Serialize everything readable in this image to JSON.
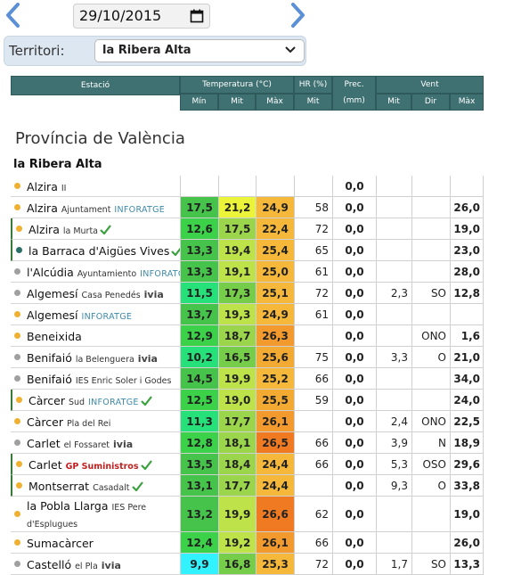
{
  "date": {
    "value": "29/10/2015"
  },
  "territory": {
    "label": "Territori:",
    "selected": "la Ribera Alta"
  },
  "header": {
    "station": "Estació",
    "temperature": "Temperatura (°C)",
    "hr": "HR (%)",
    "prec": "Prec. (mm)",
    "wind": "Vent",
    "min": "Mín",
    "mit": "Mit",
    "max": "Màx",
    "hr_mit": "Mit",
    "wind_mit": "Mit",
    "wind_dir": "Dir",
    "wind_max": "Màx"
  },
  "province": "Província de València",
  "region": "la Ribera Alta",
  "colors": {
    "header_bg": "#3f7173",
    "dot_orange": "#f0b030",
    "dot_gray": "#a0a0a0",
    "dot_teal": "#2a6f68",
    "check": "#3aa040"
  },
  "stations": [
    {
      "name": "Alzira",
      "sub": "II",
      "brand": "",
      "check": false,
      "dot": "orange",
      "tmin": "",
      "tmit": "",
      "tmax": "",
      "hr": "",
      "prec": "0,0",
      "wmit": "",
      "wdir": "",
      "wmax": ""
    },
    {
      "name": "Alzira",
      "sub": "Ajuntament",
      "brand": "INFORATGE",
      "check": false,
      "dot": "orange",
      "tmin": "17,5",
      "tmit": "21,2",
      "tmax": "24,9",
      "hr": "58",
      "prec": "0,0",
      "wmit": "",
      "wdir": "",
      "wmax": "26,0"
    },
    {
      "name": "Alzira",
      "sub": "la Murta",
      "brand": "",
      "check": true,
      "dot": "orange",
      "tmin": "12,6",
      "tmit": "17,5",
      "tmax": "22,4",
      "hr": "72",
      "prec": "0,0",
      "wmit": "",
      "wdir": "",
      "wmax": "19,0"
    },
    {
      "name": "la Barraca d'Aigües Vives",
      "sub": "",
      "brand": "",
      "check": true,
      "dot": "teal",
      "tmin": "13,3",
      "tmit": "19,4",
      "tmax": "25,4",
      "hr": "65",
      "prec": "0,0",
      "wmit": "",
      "wdir": "",
      "wmax": "23,0"
    },
    {
      "name": "l'Alcúdia",
      "sub": "Ayuntamiento",
      "brand": "INFORATGE",
      "check": false,
      "dot": "gray",
      "tmin": "13,3",
      "tmit": "19,1",
      "tmax": "25,0",
      "hr": "61",
      "prec": "0,0",
      "wmit": "",
      "wdir": "",
      "wmax": "28,0"
    },
    {
      "name": "Algemesí",
      "sub": "Casa Penedés",
      "brand": "ivia",
      "check": false,
      "dot": "gray",
      "tmin": "11,5",
      "tmit": "17,3",
      "tmax": "25,1",
      "hr": "72",
      "prec": "0,0",
      "wmit": "2,3",
      "wdir": "SO",
      "wmax": "12,8"
    },
    {
      "name": "Algemesí",
      "sub": "",
      "brand": "INFORATGE",
      "check": false,
      "dot": "orange",
      "tmin": "13,7",
      "tmit": "19,3",
      "tmax": "24,9",
      "hr": "61",
      "prec": "0,0",
      "wmit": "",
      "wdir": "",
      "wmax": ""
    },
    {
      "name": "Beneixida",
      "sub": "",
      "brand": "",
      "check": false,
      "dot": "orange",
      "tmin": "12,9",
      "tmit": "18,7",
      "tmax": "26,3",
      "hr": "",
      "prec": "0,0",
      "wmit": "",
      "wdir": "ONO",
      "wmax": "1,6"
    },
    {
      "name": "Benifaió",
      "sub": "la Belenguera",
      "brand": "ivia",
      "check": false,
      "dot": "gray",
      "tmin": "10,2",
      "tmit": "16,5",
      "tmax": "25,6",
      "hr": "75",
      "prec": "0,0",
      "wmit": "3,3",
      "wdir": "O",
      "wmax": "21,0"
    },
    {
      "name": "Benifaió",
      "sub": "IES Enric Soler i Godes",
      "brand": "",
      "check": false,
      "dot": "gray",
      "tmin": "14,5",
      "tmit": "19,9",
      "tmax": "25,2",
      "hr": "66",
      "prec": "0,0",
      "wmit": "",
      "wdir": "",
      "wmax": "34,0"
    },
    {
      "name": "Càrcer",
      "sub": "Sud",
      "brand": "INFORATGE",
      "check": true,
      "dot": "orange",
      "tmin": "12,5",
      "tmit": "19,0",
      "tmax": "25,5",
      "hr": "59",
      "prec": "0,0",
      "wmit": "",
      "wdir": "",
      "wmax": "24,0"
    },
    {
      "name": "Càrcer",
      "sub": "Pla del Rei",
      "brand": "",
      "check": false,
      "dot": "orange",
      "tmin": "11,3",
      "tmit": "17,7",
      "tmax": "26,1",
      "hr": "",
      "prec": "0,0",
      "wmit": "2,4",
      "wdir": "ONO",
      "wmax": "22,5"
    },
    {
      "name": "Carlet",
      "sub": "el Fossaret",
      "brand": "ivia",
      "check": false,
      "dot": "gray",
      "tmin": "12,8",
      "tmit": "18,1",
      "tmax": "26,5",
      "hr": "66",
      "prec": "0,0",
      "wmit": "3,9",
      "wdir": "N",
      "wmax": "18,9"
    },
    {
      "name": "Carlet",
      "sub": "",
      "brand": "GP Suministros",
      "check": true,
      "dot": "orange",
      "tmin": "13,5",
      "tmit": "18,4",
      "tmax": "24,4",
      "hr": "66",
      "prec": "0,0",
      "wmit": "5,3",
      "wdir": "OSO",
      "wmax": "29,6"
    },
    {
      "name": "Montserrat",
      "sub": "Casadalt",
      "brand": "",
      "check": true,
      "dot": "orange",
      "tmin": "13,1",
      "tmit": "17,7",
      "tmax": "24,4",
      "hr": "",
      "prec": "0,0",
      "wmit": "9,3",
      "wdir": "O",
      "wmax": "33,8"
    },
    {
      "name": "la Pobla Llarga",
      "sub": "IES Pere d'Esplugues",
      "brand": "",
      "check": false,
      "dot": "orange",
      "tmin": "13,2",
      "tmit": "19,9",
      "tmax": "26,6",
      "hr": "62",
      "prec": "0,0",
      "wmit": "",
      "wdir": "",
      "wmax": "19,0"
    },
    {
      "name": "Sumacàrcer",
      "sub": "",
      "brand": "",
      "check": false,
      "dot": "orange",
      "tmin": "12,4",
      "tmit": "19,2",
      "tmax": "26,1",
      "hr": "66",
      "prec": "0,0",
      "wmit": "",
      "wdir": "",
      "wmax": "26,0"
    },
    {
      "name": "Castelló",
      "sub": "el Pla",
      "brand": "ivia",
      "check": false,
      "dot": "gray",
      "tmin": "9,9",
      "tmit": "16,8",
      "tmax": "25,3",
      "hr": "72",
      "prec": "0,0",
      "wmit": "1,7",
      "wdir": "SO",
      "wmax": "13,3"
    }
  ]
}
